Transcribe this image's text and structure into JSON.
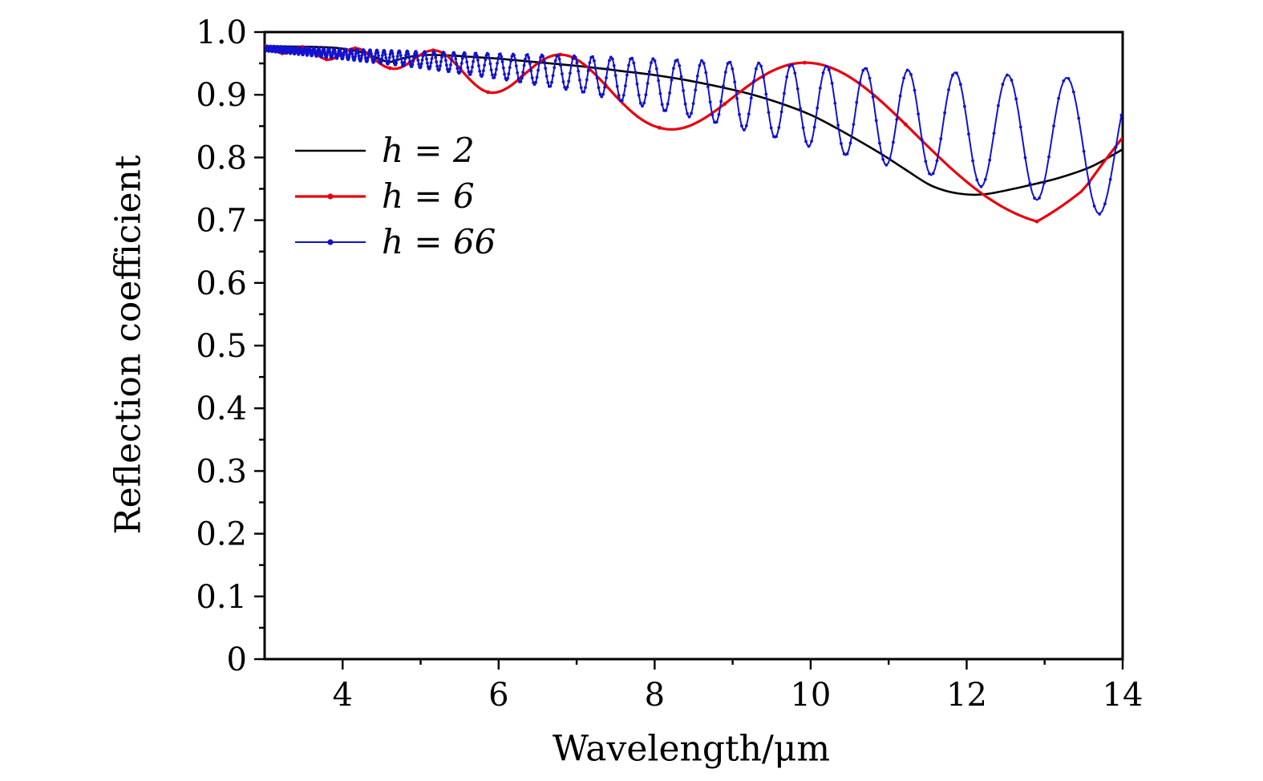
{
  "chart_data": {
    "type": "line",
    "title": "",
    "xlabel": "Wavelength/μm",
    "ylabel": "Reflection coefficient",
    "xlim": [
      3,
      14
    ],
    "ylim": [
      0,
      1.0
    ],
    "grid": false,
    "background": "#ffffff",
    "frame_color": "#000000",
    "x_major_ticks": [
      4,
      6,
      8,
      10,
      12,
      14
    ],
    "x_minor_ticks": [
      5,
      7,
      9,
      11,
      13
    ],
    "y_major_tick_values": [
      0,
      0.1,
      0.2,
      0.3,
      0.4,
      0.5,
      0.6,
      0.7,
      0.8,
      0.9,
      1.0
    ],
    "y_major_tick_labels": [
      "0",
      "0.1",
      "0.2",
      "0.3",
      "0.4",
      "0.5",
      "0.6",
      "0.7",
      "0.8",
      "0.9",
      "1.0"
    ],
    "y_minor_ticks": [
      0.05,
      0.15,
      0.25,
      0.35,
      0.45,
      0.55,
      0.65,
      0.75,
      0.85,
      0.95
    ],
    "legend": {
      "position": "upper-left-inside"
    },
    "series": [
      {
        "name": "h = 2",
        "color": "#000000",
        "line_width": 2.6,
        "marker": "none",
        "points": [
          [
            3.05,
            0.977
          ],
          [
            3.3,
            0.977
          ],
          [
            3.6,
            0.9765
          ],
          [
            3.9,
            0.975
          ],
          [
            4.1,
            0.9715
          ],
          [
            4.3,
            0.966
          ],
          [
            4.5,
            0.9555
          ],
          [
            4.62,
            0.9525
          ],
          [
            4.75,
            0.9575
          ],
          [
            4.9,
            0.9615
          ],
          [
            5.1,
            0.9635
          ],
          [
            5.4,
            0.9625
          ],
          [
            5.7,
            0.96
          ],
          [
            6.0,
            0.9575
          ],
          [
            6.4,
            0.953
          ],
          [
            6.8,
            0.9485
          ],
          [
            7.2,
            0.9435
          ],
          [
            7.6,
            0.9375
          ],
          [
            8.0,
            0.9315
          ],
          [
            8.4,
            0.9235
          ],
          [
            8.8,
            0.9135
          ],
          [
            9.2,
            0.902
          ],
          [
            9.6,
            0.887
          ],
          [
            10.0,
            0.868
          ],
          [
            10.3,
            0.849
          ],
          [
            10.6,
            0.828
          ],
          [
            10.9,
            0.806
          ],
          [
            11.2,
            0.782
          ],
          [
            11.5,
            0.758
          ],
          [
            11.7,
            0.748
          ],
          [
            11.9,
            0.7425
          ],
          [
            12.1,
            0.7405
          ],
          [
            12.3,
            0.7425
          ],
          [
            12.6,
            0.75
          ],
          [
            12.9,
            0.7585
          ],
          [
            13.2,
            0.768
          ],
          [
            13.6,
            0.7855
          ],
          [
            14.0,
            0.813
          ]
        ]
      },
      {
        "name": "h = 6",
        "color": "#e8000d",
        "line_width": 3.2,
        "marker": "dot",
        "marker_radius": 2.4,
        "marker_every": 25,
        "model": {
          "type": "cosine_in_inverse_wavelength",
          "note": "y(lambda) = top - amp + amp*cos(2*pi*(K/lambda + phase))",
          "K": 21.5,
          "phase": 0.84,
          "u_step": 0.01,
          "top_envelope": [
            [
              3,
              0.978
            ],
            [
              6,
              0.968
            ],
            [
              8,
              0.958
            ],
            [
              10,
              0.951
            ],
            [
              12,
              0.945
            ],
            [
              14,
              0.938
            ]
          ],
          "amplitude": [
            [
              3,
              0.004
            ],
            [
              4.6,
              0.015
            ],
            [
              5.85,
              0.032
            ],
            [
              8.05,
              0.055
            ],
            [
              10,
              0.082
            ],
            [
              12.9,
              0.122
            ],
            [
              13.5,
              0.1
            ],
            [
              14,
              0.062
            ]
          ]
        },
        "key_points": {
          "minima": [
            [
              4.6,
              0.943
            ],
            [
              5.85,
              0.905
            ],
            [
              8.05,
              0.848
            ],
            [
              12.9,
              0.7
            ]
          ],
          "local_max": [
            [
              9.9,
              0.951
            ]
          ],
          "end": [
            [
              14,
              0.83
            ]
          ]
        }
      },
      {
        "name": "h = 66",
        "color": "#1212d0",
        "line_width": 2.0,
        "marker": "dot",
        "marker_radius": 1.9,
        "marker_every": 2,
        "model": {
          "type": "cosine_in_inverse_wavelength",
          "note": "y(lambda) = top - amp + amp*cos(2*pi*(K/lambda + phase))",
          "K": 220,
          "phase": 0.44,
          "u_step": 0.04,
          "top_envelope": [
            [
              3,
              0.978
            ],
            [
              4,
              0.973
            ],
            [
              5,
              0.969
            ],
            [
              6,
              0.9655
            ],
            [
              7,
              0.962
            ],
            [
              8,
              0.9575
            ],
            [
              9,
              0.9525
            ],
            [
              10,
              0.947
            ],
            [
              11,
              0.941
            ],
            [
              12,
              0.935
            ],
            [
              13,
              0.929
            ],
            [
              14,
              0.924
            ]
          ],
          "amplitude": [
            [
              3,
              0.004
            ],
            [
              4,
              0.008
            ],
            [
              5,
              0.013
            ],
            [
              6,
              0.02
            ],
            [
              7,
              0.028
            ],
            [
              8,
              0.04
            ],
            [
              9,
              0.052
            ],
            [
              10,
              0.065
            ],
            [
              11,
              0.077
            ],
            [
              12,
              0.088
            ],
            [
              13,
              0.1
            ],
            [
              13.7,
              0.108
            ],
            [
              14,
              0.105
            ]
          ]
        },
        "key_points": {
          "envelope_minima_examples": [
            [
              8.13,
              0.876
            ],
            [
              10.0,
              0.818
            ],
            [
              11.55,
              0.771
            ],
            [
              13.7,
              0.71
            ]
          ],
          "end": [
            [
              14,
              0.88
            ]
          ]
        }
      }
    ]
  }
}
